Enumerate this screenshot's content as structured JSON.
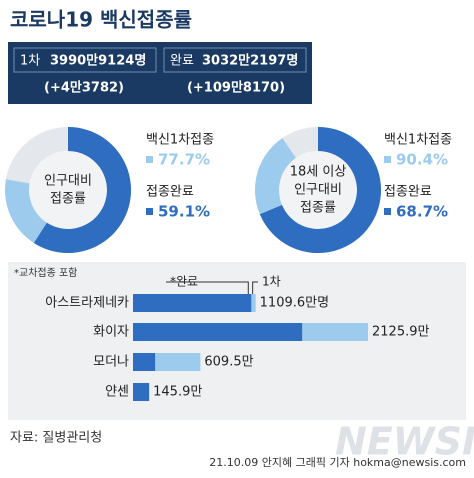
{
  "title": "코로나19 백신접종률",
  "summary": {
    "first": {
      "label": "1차",
      "total": "3990만9124명",
      "change": "(+4만3782)"
    },
    "complete": {
      "label": "완료",
      "total": "3032만2197명",
      "change": "(+109만8170)"
    }
  },
  "chart_data": [
    {
      "type": "donut",
      "center_label": [
        "인구대비",
        "접종률"
      ],
      "series": [
        {
          "name": "백신1차접종",
          "color": "#9ccbee",
          "values": [
            77.7
          ],
          "value_labels": [
            "77.7%"
          ]
        },
        {
          "name": "접종완료",
          "color": "#2e6dbf",
          "values": [
            59.1
          ],
          "value_labels": [
            "59.1%"
          ]
        }
      ]
    },
    {
      "type": "donut",
      "center_label": [
        "18세 이상",
        "인구대비",
        "접종률"
      ],
      "series": [
        {
          "name": "백신1차접종",
          "color": "#9ccbee",
          "values": [
            90.4
          ],
          "value_labels": [
            "90.4%"
          ]
        },
        {
          "name": "접종완료",
          "color": "#2e6dbf",
          "values": [
            68.7
          ],
          "value_labels": [
            "68.7%"
          ]
        }
      ]
    },
    {
      "type": "hbar",
      "note": "*교차접종 포함",
      "categories": [
        "아스트라제네카",
        "화이자",
        "모더나",
        "얀센"
      ],
      "series": [
        {
          "name": "1차",
          "color": "#9ccbee",
          "values": [
            1109.6,
            2125.9,
            609.5,
            145.9
          ],
          "value_labels": [
            "1109.6만명",
            "2125.9만",
            "609.5만",
            "145.9만"
          ]
        },
        {
          "name": "*완료",
          "color": "#2e6dbf",
          "values": [
            1070,
            1530,
            200,
            145.9
          ]
        }
      ]
    }
  ],
  "footer": {
    "source": "자료: 질병관리청",
    "credit": "21.10.09 안지혜 그래픽 기자 hokma@newsis.com",
    "watermark": "NEWSIS"
  }
}
